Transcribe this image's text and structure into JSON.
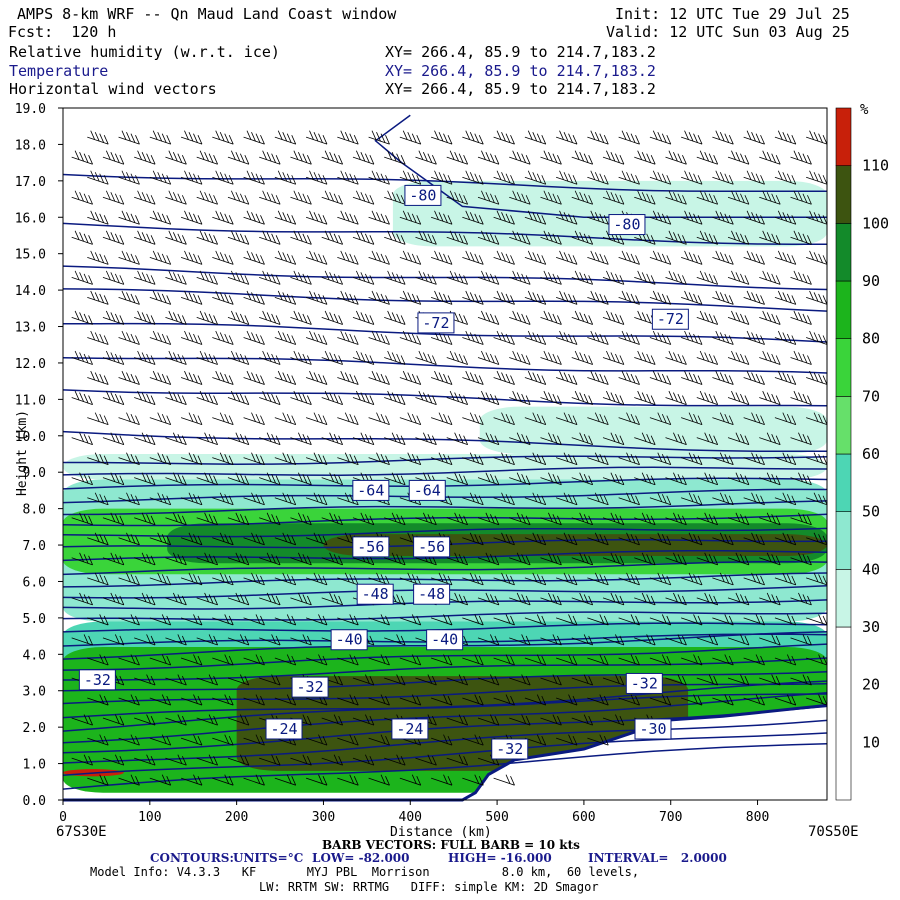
{
  "header": {
    "title": "AMPS 8-km WRF -- Qn Maud Land Coast window",
    "forecast": "Fcst:  120 h",
    "init": "Init: 12 UTC Tue 29 Jul 25",
    "valid": "Valid: 12 UTC Sun 03 Aug 25",
    "fields": [
      {
        "name": "Relative humidity (w.r.t. ice)",
        "xy": "XY= 266.4, 85.9 to 214.7,183.2",
        "color": "#000000"
      },
      {
        "name": "Temperature",
        "xy": "XY= 266.4, 85.9 to 214.7,183.2",
        "color": "#1a1a8c"
      },
      {
        "name": "Horizontal wind vectors",
        "xy": "XY= 266.4, 85.9 to 214.7,183.2",
        "color": "#000000"
      }
    ]
  },
  "footer": {
    "left_point": "67S30E",
    "right_point": "70S50E",
    "barb_note": "BARB VECTORS: FULL BARB = 10 kts",
    "contours": {
      "label": "CONTOURS:",
      "units": "UNITS=°C",
      "low": "LOW= -82.000",
      "high": "HIGH= -16.000",
      "interval": "INTERVAL=   2.0000"
    },
    "model_info": "Model Info: V4.3.3   KF       MYJ PBL  Morrison          8.0 km,  60 levels,",
    "model_info2": "LW: RRTM SW: RRTMG   DIFF: simple KM: 2D Smagor"
  },
  "colors": {
    "contour": "#0a1a80",
    "barb": "#000000",
    "terrain": "#ffffff"
  },
  "chart_data": {
    "type": "heatmap",
    "title": "Relative humidity (w.r.t. ice) / Temperature / Horizontal wind vectors",
    "xlabel": "Distance (km)",
    "ylabel": "Height (km)",
    "xlim": [
      0,
      880
    ],
    "ylim": [
      0,
      19
    ],
    "x_ticks": [
      0,
      100,
      200,
      300,
      400,
      500,
      600,
      700,
      800
    ],
    "y_ticks": [
      "0.0",
      "1.0",
      "2.0",
      "3.0",
      "4.0",
      "5.0",
      "6.0",
      "7.0",
      "8.0",
      "9.0",
      "10.0",
      "11.0",
      "12.0",
      "13.0",
      "14.0",
      "15.0",
      "16.0",
      "17.0",
      "18.0",
      "19.0"
    ],
    "colorbar": {
      "unit": "%",
      "labels": [
        10,
        20,
        30,
        40,
        50,
        60,
        70,
        80,
        90,
        100,
        110
      ],
      "bins": [
        {
          "from": 0,
          "to": 30,
          "color": "#ffffff"
        },
        {
          "from": 30,
          "to": 40,
          "color": "#c8f5e6"
        },
        {
          "from": 40,
          "to": 50,
          "color": "#8ee8d0"
        },
        {
          "from": 50,
          "to": 60,
          "color": "#4dd6b4"
        },
        {
          "from": 60,
          "to": 70,
          "color": "#66e06a"
        },
        {
          "from": 70,
          "to": 80,
          "color": "#3ad43a"
        },
        {
          "from": 80,
          "to": 90,
          "color": "#1cb41c"
        },
        {
          "from": 90,
          "to": 100,
          "color": "#138a2a"
        },
        {
          "from": 100,
          "to": 110,
          "color": "#3d5410"
        },
        {
          "from": 110,
          "to": 120,
          "color": "#c8200a"
        }
      ]
    },
    "rh_bands": [
      {
        "rh": 35,
        "x0": 0,
        "x1": 880,
        "z0": 8.8,
        "z1": 9.5
      },
      {
        "rh": 45,
        "x0": 0,
        "x1": 880,
        "z0": 4.9,
        "z1": 8.8
      },
      {
        "rh": 35,
        "x0": 380,
        "x1": 880,
        "z0": 15.2,
        "z1": 17.0
      },
      {
        "rh": 35,
        "x0": 480,
        "x1": 880,
        "z0": 9.5,
        "z1": 10.8
      },
      {
        "rh": 75,
        "x0": 0,
        "x1": 880,
        "z0": 6.2,
        "z1": 8.0
      },
      {
        "rh": 95,
        "x0": 120,
        "x1": 880,
        "z0": 6.5,
        "z1": 7.6
      },
      {
        "rh": 105,
        "x0": 300,
        "x1": 880,
        "z0": 6.7,
        "z1": 7.3
      },
      {
        "rh": 55,
        "x0": 0,
        "x1": 880,
        "z0": 1.2,
        "z1": 4.9
      },
      {
        "rh": 85,
        "x0": 0,
        "x1": 880,
        "z0": 0.2,
        "z1": 4.2
      },
      {
        "rh": 105,
        "x0": 200,
        "x1": 720,
        "z0": 0.8,
        "z1": 3.4
      },
      {
        "rh": 115,
        "x0": 0,
        "x1": 70,
        "z0": 0.65,
        "z1": 0.85
      }
    ],
    "terrain": [
      [
        0,
        0
      ],
      [
        460,
        0
      ],
      [
        475,
        0.2
      ],
      [
        490,
        0.7
      ],
      [
        520,
        1.1
      ],
      [
        600,
        1.4
      ],
      [
        650,
        1.8
      ],
      [
        700,
        2.2
      ],
      [
        760,
        2.3
      ],
      [
        800,
        2.4
      ],
      [
        880,
        2.6
      ]
    ],
    "isotherm_labels": [
      {
        "text": "-80",
        "x": 395,
        "z": 16.6
      },
      {
        "text": "-80",
        "x": 630,
        "z": 15.8
      },
      {
        "text": "-72",
        "x": 410,
        "z": 13.1
      },
      {
        "text": "-72",
        "x": 680,
        "z": 13.2
      },
      {
        "text": "-64",
        "x": 335,
        "z": 8.5
      },
      {
        "text": "-64",
        "x": 400,
        "z": 8.5
      },
      {
        "text": "-56",
        "x": 335,
        "z": 6.95
      },
      {
        "text": "-56",
        "x": 405,
        "z": 6.95
      },
      {
        "text": "-48",
        "x": 340,
        "z": 5.65
      },
      {
        "text": "-48",
        "x": 405,
        "z": 5.65
      },
      {
        "text": "-40",
        "x": 310,
        "z": 4.4
      },
      {
        "text": "-40",
        "x": 420,
        "z": 4.4
      },
      {
        "text": "-32",
        "x": 20,
        "z": 3.3
      },
      {
        "text": "-32",
        "x": 265,
        "z": 3.1
      },
      {
        "text": "-32",
        "x": 650,
        "z": 3.2
      },
      {
        "text": "-24",
        "x": 235,
        "z": 1.95
      },
      {
        "text": "-24",
        "x": 380,
        "z": 1.95
      },
      {
        "text": "-32",
        "x": 495,
        "z": 1.4
      },
      {
        "text": "-30",
        "x": 660,
        "z": 1.95
      }
    ]
  }
}
